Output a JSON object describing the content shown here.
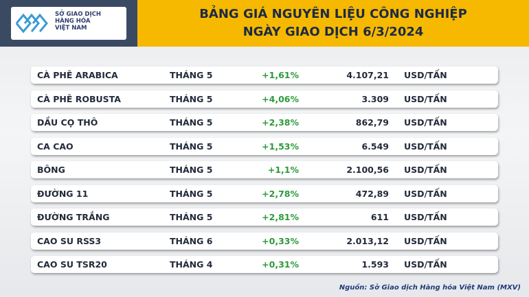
{
  "header": {
    "logo": [
      "SỞ GIAO DỊCH",
      "HÀNG HÓA",
      "VIỆT NAM"
    ],
    "title": [
      "BẢNG GIÁ NGUYÊN LIỆU CÔNG NGHIỆP",
      "NGÀY GIAO DỊCH 6/3/2024"
    ]
  },
  "table": {
    "rows": [
      [
        "CÀ PHÊ ARABICA",
        "THÁNG 5",
        "+1,61%",
        "4.107,21",
        "USD/TẤN"
      ],
      [
        "CÀ PHÊ ROBUSTA",
        "THÁNG 5",
        "+4,06%",
        "3.309",
        "USD/TẤN"
      ],
      [
        "DẦU CỌ THÔ",
        "THÁNG 5",
        "+2,38%",
        "862,79",
        "USD/TẤN"
      ],
      [
        "CA CAO",
        "THÁNG 5",
        "+1,53%",
        "6.549",
        "USD/TẤN"
      ],
      [
        "BÔNG",
        "THÁNG 5",
        "+1,1%",
        "2.100,56",
        "USD/TẤN"
      ],
      [
        "ĐƯỜNG 11",
        "THÁNG 5",
        "+2,78%",
        "472,89",
        "USD/TẤN"
      ],
      [
        "ĐƯỜNG TRẮNG",
        "THÁNG 5",
        "+2,81%",
        "611",
        "USD/TẤN"
      ],
      [
        "CAO SU RSS3",
        "THÁNG 6",
        "+0,33%",
        "2.013,12",
        "USD/TẤN"
      ],
      [
        "CAO SU TSR20",
        "THÁNG 4",
        "+0,31%",
        "1.593",
        "USD/TẤN"
      ]
    ]
  },
  "footer": {
    "source": "Nguồn: Sở Giao dịch Hàng hóa Việt Nam (MXV)"
  }
}
